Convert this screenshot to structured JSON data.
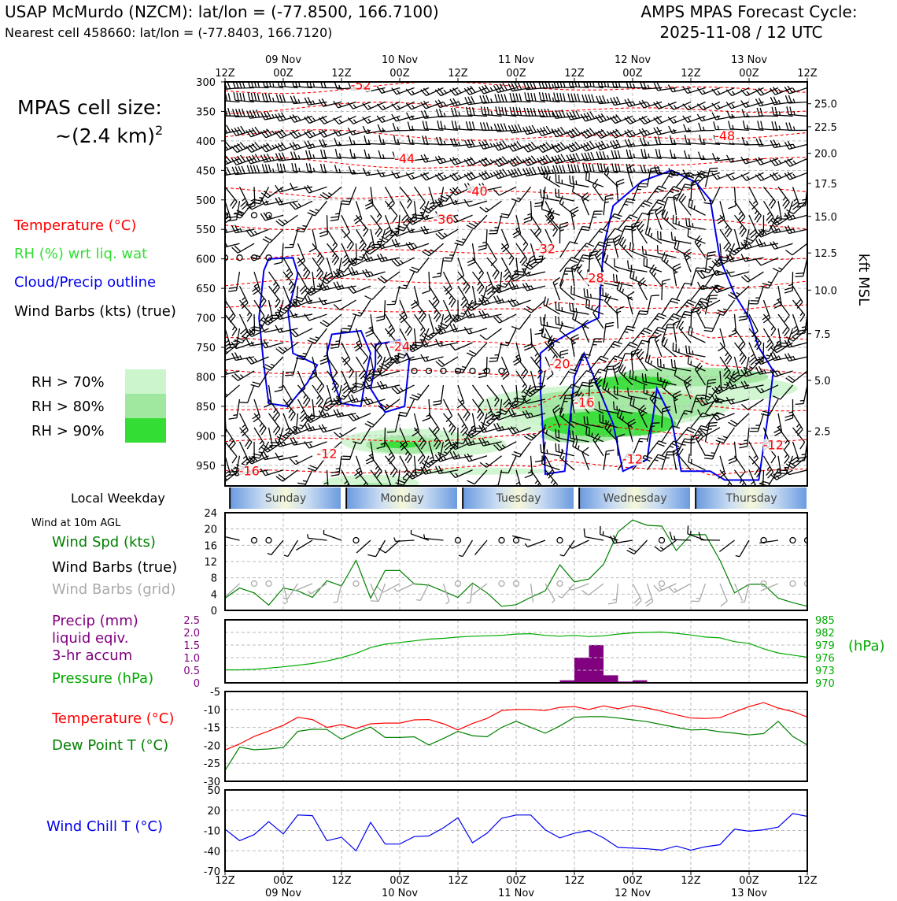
{
  "header": {
    "station_title": "USAP McMurdo (NZCM): lat/lon = (-77.8500, 166.7100)",
    "nearest_cell": "Nearest cell 458660: lat/lon = (-77.8403, 166.7120)",
    "cycle_line1": "AMPS MPAS Forecast Cycle:",
    "cycle_line2": "2025-11-08 / 12 UTC"
  },
  "side_panel": {
    "cell_size_line1": "MPAS cell size:",
    "cell_size_line2": "~(2.4 km)",
    "cell_size_sup": "2",
    "legend_temperature": "Temperature (°C)",
    "legend_rh": "RH (%) wrt liq. wat",
    "legend_cloud": "Cloud/Precip outline",
    "legend_wind": "Wind Barbs (kts) (true)",
    "rh_70": "RH > 70%",
    "rh_80": "RH > 80%",
    "rh_90": "RH > 90%",
    "local_weekday": "Local Weekday",
    "wind_10m": "Wind at 10m AGL",
    "wind_spd": "Wind Spd (kts)",
    "wind_barbs_true": "Wind Barbs (true)",
    "wind_barbs_grid": "Wind Barbs (grid)",
    "precip_line1": "Precip (mm)",
    "precip_line2": "liquid eqiv.",
    "precip_line3": "3-hr accum",
    "pressure_label": "Pressure (hPa)",
    "temp_label": "Temperature (°C)",
    "dewpoint_label": "Dew Point T (°C)",
    "windchill_label": "Wind Chill T (°C)"
  },
  "colors": {
    "temperature": "#ff0000",
    "rh": "#33dd33",
    "cloud": "#0000ee",
    "wind": "#000000",
    "grid_barb": "#aaaaaa",
    "precip": "#800080",
    "pressure": "#00aa00",
    "dewpoint": "#008000",
    "windchill": "#0000ee",
    "rh70": "#ccf5cc",
    "rh80": "#a0e8a0",
    "rh90": "#33dd33"
  },
  "chart_data": {
    "time_axis": {
      "ticks": [
        "12Z",
        "00Z",
        "12Z",
        "00Z",
        "12Z",
        "00Z",
        "12Z",
        "00Z",
        "12Z",
        "00Z",
        "12Z"
      ],
      "dates": [
        "09 Nov",
        "10 Nov",
        "11 Nov",
        "12 Nov",
        "13 Nov"
      ],
      "weekdays": [
        "Sunday",
        "Monday",
        "Tuesday",
        "Wednesday",
        "Thursday"
      ],
      "hours_total": 120
    },
    "cross_section": {
      "type": "heatmap",
      "pressure_ticks": [
        300,
        350,
        400,
        450,
        500,
        550,
        600,
        650,
        700,
        750,
        800,
        850,
        900,
        950
      ],
      "ylim_hpa": [
        300,
        985
      ],
      "kft_ticks": [
        "25.0",
        "22.5",
        "20.0",
        "17.5",
        "15.0",
        "12.5",
        "10.0",
        "7.5",
        "5.0",
        "2.5"
      ],
      "kft_ticks_hpa": [
        337,
        376,
        421,
        472,
        528,
        590,
        653,
        727,
        806,
        892
      ],
      "right_label": "kft MSL",
      "temp_contour_labels": [
        {
          "text": "-52",
          "t": 28,
          "p": 310
        },
        {
          "text": "-48",
          "t": 103,
          "p": 396
        },
        {
          "text": "-44",
          "t": 37,
          "p": 435
        },
        {
          "text": "-40",
          "t": 52,
          "p": 490
        },
        {
          "text": "-36",
          "t": 45,
          "p": 538
        },
        {
          "text": "-32",
          "t": 66,
          "p": 588
        },
        {
          "text": "-28",
          "t": 76,
          "p": 637
        },
        {
          "text": "-24",
          "t": 36,
          "p": 753
        },
        {
          "text": "-20",
          "t": 69,
          "p": 783
        },
        {
          "text": "-16",
          "t": 74,
          "p": 848
        },
        {
          "text": "-12",
          "t": 21,
          "p": 935
        },
        {
          "text": "-12",
          "t": 84,
          "p": 944
        },
        {
          "text": "-12",
          "t": 113,
          "p": 920
        },
        {
          "text": "-16",
          "t": 5,
          "p": 964
        }
      ]
    },
    "wind_panel": {
      "type": "line",
      "ylim": [
        0,
        24
      ],
      "yticks": [
        0,
        4,
        8,
        12,
        16,
        20,
        24
      ],
      "hours": [
        0,
        3,
        6,
        9,
        12,
        15,
        18,
        21,
        24,
        27,
        30,
        33,
        36,
        39,
        42,
        45,
        48,
        51,
        54,
        57,
        60,
        63,
        66,
        69,
        72,
        75,
        78,
        81,
        84,
        87,
        90,
        93,
        96,
        99,
        102,
        105,
        108,
        111,
        114,
        117,
        120
      ],
      "wind_speed": [
        3,
        5.5,
        4.3,
        1.3,
        5.5,
        4.8,
        3.2,
        7.3,
        6,
        12.3,
        3,
        9.8,
        9.8,
        6.5,
        6.2,
        4.7,
        3.2,
        6.7,
        4.3,
        1,
        1.4,
        3.2,
        4.8,
        11.2,
        7,
        7.7,
        11.3,
        19.3,
        22.2,
        20.9,
        20.7,
        14.7,
        18.6,
        18.6,
        12.3,
        4.3,
        6.4,
        6.4,
        3,
        1.9,
        1
      ]
    },
    "precip_pressure_panel": {
      "type": "bar",
      "precip_ylim": [
        0,
        2.5
      ],
      "precip_ticks": [
        "0",
        "0.5",
        "1.0",
        "1.5",
        "2.0",
        "2.5"
      ],
      "pressure_ticks": [
        "970",
        "973",
        "976",
        "979",
        "982",
        "985"
      ],
      "pressure_ylim": [
        970,
        985
      ],
      "right_label": "(hPa)",
      "precip_bars": [
        {
          "start": 69,
          "end": 72,
          "value": 0.1
        },
        {
          "start": 72,
          "end": 75,
          "value": 1.0
        },
        {
          "start": 75,
          "end": 78,
          "value": 1.5
        },
        {
          "start": 78,
          "end": 81,
          "value": 0.3
        },
        {
          "start": 81,
          "end": 84,
          "value": 0.05
        },
        {
          "start": 84,
          "end": 87,
          "value": 0.1
        }
      ],
      "pressure_hours": [
        0,
        3,
        6,
        9,
        12,
        15,
        18,
        21,
        24,
        27,
        30,
        33,
        36,
        39,
        42,
        45,
        48,
        51,
        54,
        57,
        60,
        63,
        66,
        69,
        72,
        75,
        78,
        81,
        84,
        87,
        90,
        93,
        96,
        99,
        102,
        105,
        108,
        111,
        114,
        117,
        120
      ],
      "pressure_values": [
        973.1,
        973.1,
        973.2,
        973.5,
        973.8,
        974.2,
        974.6,
        975.2,
        976.0,
        977,
        978.4,
        979.2,
        979.6,
        980.0,
        980.4,
        980.6,
        980.9,
        981.1,
        981.2,
        981.3,
        981.6,
        981.7,
        981.3,
        981.1,
        981.3,
        981.0,
        981.2,
        981.6,
        981.9,
        982.0,
        982.1,
        981.8,
        981.4,
        980.9,
        980.7,
        979.8,
        979.4,
        978.1,
        977.1,
        976.6,
        976.1
      ]
    },
    "temperature_panel": {
      "type": "line",
      "ylim": [
        -30,
        -5
      ],
      "yticks": [
        -5,
        -10,
        -15,
        -20,
        -25,
        -30
      ],
      "hours": [
        0,
        3,
        6,
        9,
        12,
        15,
        18,
        21,
        24,
        27,
        30,
        33,
        36,
        39,
        42,
        45,
        48,
        51,
        54,
        57,
        60,
        63,
        66,
        69,
        72,
        75,
        78,
        81,
        84,
        87,
        90,
        93,
        96,
        99,
        102,
        105,
        108,
        111,
        114,
        117,
        120
      ],
      "temperature": [
        -21.3,
        -19.6,
        -17.5,
        -16,
        -14.4,
        -12.2,
        -12.8,
        -15,
        -14.2,
        -15.3,
        -14,
        -13.8,
        -13.8,
        -12.9,
        -12.8,
        -14,
        -15.7,
        -13.9,
        -12.5,
        -10.3,
        -10,
        -10,
        -10.3,
        -9.4,
        -9.2,
        -10,
        -9,
        -9.8,
        -8.9,
        -9.6,
        -10.5,
        -11.5,
        -12.4,
        -12.5,
        -12.3,
        -10.7,
        -9.2,
        -8.1,
        -9.6,
        -10.6,
        -12.1
      ],
      "dewpoint": [
        -27,
        -20.5,
        -21.2,
        -21,
        -20.6,
        -16.1,
        -15.5,
        -15.6,
        -18.3,
        -16.4,
        -14.9,
        -17.8,
        -17.8,
        -17.6,
        -19.9,
        -18.1,
        -16.1,
        -17.3,
        -17.6,
        -15,
        -13.3,
        -15,
        -16.6,
        -14.6,
        -12.2,
        -12,
        -12,
        -12.4,
        -12.9,
        -13.4,
        -14.2,
        -15,
        -15.7,
        -15.6,
        -16.2,
        -16.6,
        -17.1,
        -16.7,
        -13.3,
        -17.5,
        -19.9
      ]
    },
    "windchill_panel": {
      "type": "line",
      "ylim": [
        -70,
        50
      ],
      "yticks": [
        50,
        20,
        -10,
        -40,
        -70
      ],
      "hours": [
        0,
        3,
        6,
        9,
        12,
        15,
        18,
        21,
        24,
        27,
        30,
        33,
        36,
        39,
        42,
        45,
        48,
        51,
        54,
        57,
        60,
        63,
        66,
        69,
        72,
        75,
        78,
        81,
        84,
        87,
        90,
        93,
        96,
        99,
        102,
        105,
        108,
        111,
        114,
        117,
        120
      ],
      "windchill": [
        -8,
        -25,
        -16,
        3,
        -15,
        13,
        12,
        -25,
        -20,
        -40,
        2,
        -30,
        -30,
        -19,
        -18,
        -6,
        9,
        -28,
        -14,
        8,
        13,
        13,
        -9,
        -21,
        -14,
        -10,
        -21,
        -35,
        -36,
        -37,
        -39,
        -33,
        -39,
        -34,
        -31,
        -8,
        -11,
        -9,
        -5,
        15,
        11
      ]
    },
    "x_ticks_bottom": [
      "12Z",
      "00Z",
      "12Z",
      "00Z",
      "12Z",
      "00Z",
      "12Z",
      "00Z",
      "12Z",
      "00Z",
      "12Z"
    ],
    "x_dates_bottom": [
      "09 Nov",
      "10 Nov",
      "11 Nov",
      "12 Nov",
      "13 Nov"
    ]
  }
}
